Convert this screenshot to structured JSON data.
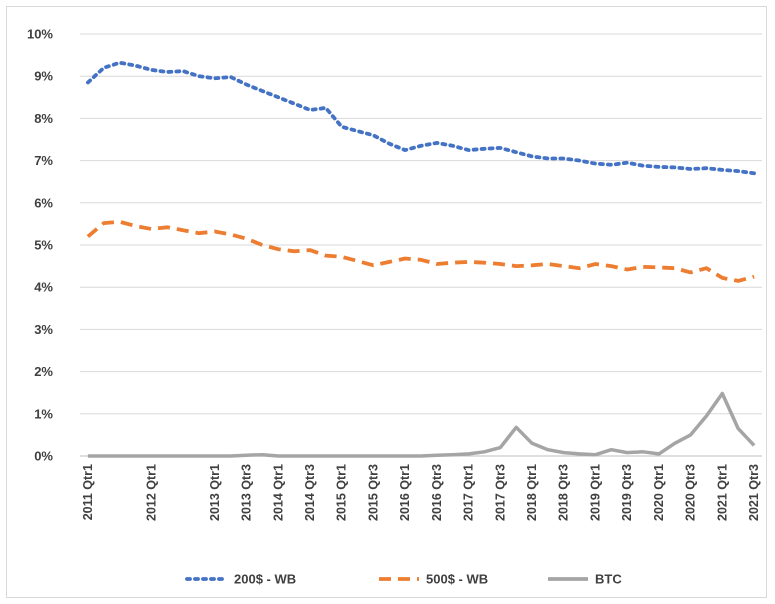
{
  "chart_data": {
    "type": "line",
    "title": "",
    "xlabel": "",
    "ylabel": "",
    "y_tick_labels": [
      "0%",
      "1%",
      "2%",
      "3%",
      "4%",
      "5%",
      "6%",
      "7%",
      "8%",
      "9%",
      "10%"
    ],
    "ylim": [
      0,
      10
    ],
    "y_unit": "%",
    "grid": "horizontal",
    "legend_position": "bottom",
    "x": [
      "2011 Qtr1",
      "2011 Qtr2",
      "2011 Qtr3",
      "2011 Qtr4",
      "2012 Qtr1",
      "2012 Qtr2",
      "2012 Qtr3",
      "2012 Qtr4",
      "2013 Qtr1",
      "2013 Qtr2",
      "2013 Qtr3",
      "2013 Qtr4",
      "2014 Qtr1",
      "2014 Qtr2",
      "2014 Qtr3",
      "2014 Qtr4",
      "2015 Qtr1",
      "2015 Qtr2",
      "2015 Qtr3",
      "2015 Qtr4",
      "2016 Qtr1",
      "2016 Qtr2",
      "2016 Qtr3",
      "2016 Qtr4",
      "2017 Qtr1",
      "2017 Qtr2",
      "2017 Qtr3",
      "2017 Qtr4",
      "2018 Qtr1",
      "2018 Qtr2",
      "2018 Qtr3",
      "2018 Qtr4",
      "2019 Qtr1",
      "2019 Qtr2",
      "2019 Qtr3",
      "2019 Qtr4",
      "2020 Qtr1",
      "2020 Qtr2",
      "2020 Qtr3",
      "2020 Qtr4",
      "2021 Qtr1",
      "2021 Qtr2",
      "2021 Qtr3"
    ],
    "x_tick_labels": [
      "2011 Qtr1",
      "2012 Qtr1",
      "2013 Qtr1",
      "2013 Qtr3",
      "2014 Qtr1",
      "2014 Qtr3",
      "2015 Qtr1",
      "2015 Qtr3",
      "2016 Qtr1",
      "2016 Qtr3",
      "2017 Qtr1",
      "2017 Qtr3",
      "2018 Qtr1",
      "2018 Qtr3",
      "2019 Qtr1",
      "2019 Qtr3",
      "2020 Qtr1",
      "2020 Qtr3",
      "2021 Qtr1",
      "2021 Qtr3"
    ],
    "series": [
      {
        "name": "200$ - WB",
        "color": "#4472c4",
        "style": "dotted",
        "values": [
          8.85,
          9.2,
          9.32,
          9.25,
          9.15,
          9.1,
          9.12,
          9.0,
          8.95,
          8.98,
          8.8,
          8.65,
          8.5,
          8.35,
          8.2,
          8.25,
          7.8,
          7.7,
          7.6,
          7.4,
          7.25,
          7.35,
          7.42,
          7.35,
          7.25,
          7.28,
          7.3,
          7.2,
          7.1,
          7.05,
          7.05,
          7.0,
          6.93,
          6.9,
          6.95,
          6.88,
          6.85,
          6.84,
          6.8,
          6.82,
          6.78,
          6.75,
          6.7
        ]
      },
      {
        "name": "500$ - WB",
        "color": "#ed7d31",
        "style": "dashed",
        "values": [
          5.2,
          5.52,
          5.55,
          5.45,
          5.38,
          5.42,
          5.35,
          5.28,
          5.32,
          5.25,
          5.15,
          5.0,
          4.9,
          4.85,
          4.88,
          4.75,
          4.72,
          4.62,
          4.52,
          4.6,
          4.68,
          4.65,
          4.55,
          4.58,
          4.6,
          4.58,
          4.55,
          4.5,
          4.52,
          4.55,
          4.5,
          4.45,
          4.55,
          4.5,
          4.42,
          4.48,
          4.47,
          4.45,
          4.35,
          4.45,
          4.22,
          4.15,
          4.25
        ]
      },
      {
        "name": "BTC",
        "color": "#a5a5a5",
        "style": "solid",
        "values": [
          0,
          0,
          0,
          0,
          0,
          0,
          0,
          0,
          0,
          0,
          0.02,
          0.03,
          0,
          0,
          0,
          0,
          0,
          0,
          0,
          0,
          0,
          0,
          0.02,
          0.03,
          0.05,
          0.1,
          0.2,
          0.68,
          0.3,
          0.15,
          0.08,
          0.05,
          0.03,
          0.15,
          0.08,
          0.1,
          0.05,
          0.3,
          0.5,
          0.95,
          1.48,
          0.65,
          0.25
        ]
      }
    ]
  }
}
